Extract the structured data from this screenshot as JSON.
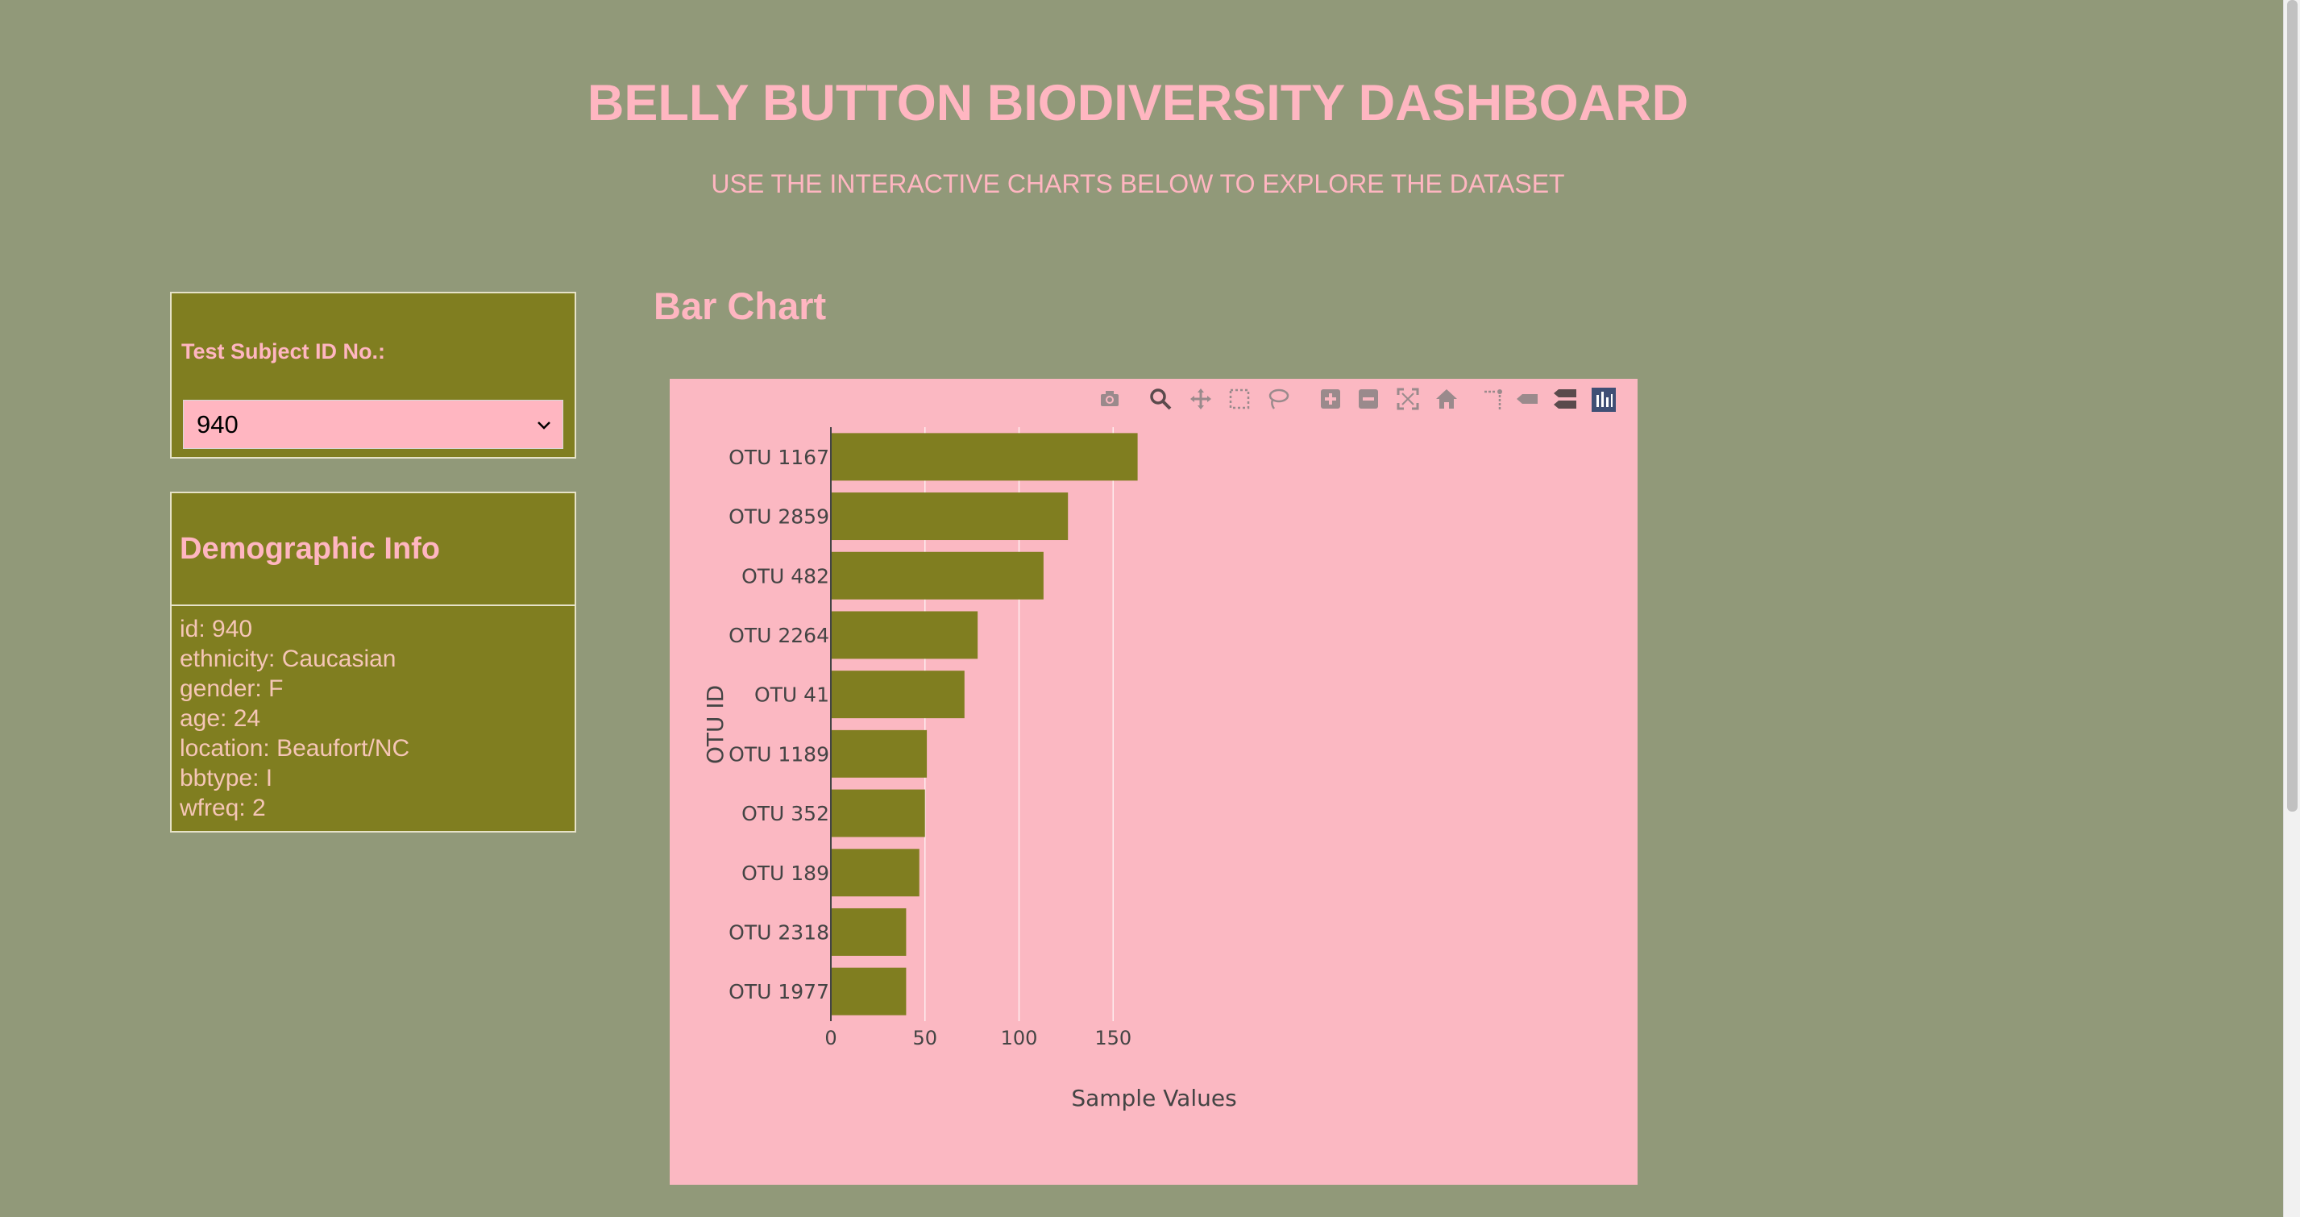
{
  "header": {
    "title": "BELLY BUTTON BIODIVERSITY DASHBOARD",
    "subtitle": "USE THE INTERACTIVE CHARTS BELOW TO EXPLORE THE DATASET"
  },
  "selector": {
    "label": "Test Subject ID No.:",
    "selected": "940"
  },
  "demographics": {
    "title": "Demographic Info",
    "rows": [
      "id: 940",
      "ethnicity: Caucasian",
      "gender: F",
      "age: 24",
      "location: Beaufort/NC",
      "bbtype: I",
      "wfreq: 2"
    ]
  },
  "chart_section": {
    "title": "Bar Chart"
  },
  "modebar": {
    "icons": [
      "camera-icon",
      "zoom-icon",
      "pan-icon",
      "box-select-icon",
      "lasso-icon",
      "zoom-in-icon",
      "zoom-out-icon",
      "autoscale-icon",
      "reset-axes-icon",
      "spike-lines-icon",
      "hover-closest-icon",
      "hover-compare-icon",
      "plotly-logo-icon"
    ]
  },
  "colors": {
    "background": "#919979",
    "panel": "#807e20",
    "accent_pink": "#ffb6c1",
    "plot_bg": "#fbb8c2",
    "bar": "#807e20"
  },
  "chart_data": {
    "type": "bar",
    "orientation": "horizontal",
    "categories": [
      "OTU 1167",
      "OTU 2859",
      "OTU 482",
      "OTU 2264",
      "OTU 41",
      "OTU 1189",
      "OTU 352",
      "OTU 189",
      "OTU 2318",
      "OTU 1977"
    ],
    "values": [
      163,
      126,
      113,
      78,
      71,
      51,
      50,
      47,
      40,
      40
    ],
    "xlabel": "Sample Values",
    "ylabel": "OTU ID",
    "xlim": [
      0,
      210
    ],
    "xticks": [
      0,
      50,
      100,
      150
    ],
    "grid": true
  }
}
